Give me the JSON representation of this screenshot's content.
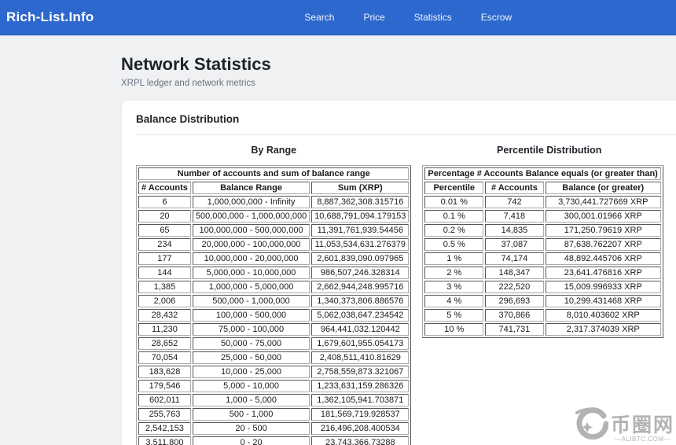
{
  "header": {
    "brand": "Rich-List.Info",
    "nav": [
      "Search",
      "Price",
      "Statistics",
      "Escrow"
    ]
  },
  "page": {
    "title": "Network Statistics",
    "subtitle": "XRPL ledger and network metrics"
  },
  "card": {
    "title": "Balance Distribution"
  },
  "by_range": {
    "heading": "By Range",
    "caption": "Number of accounts and sum of balance range",
    "columns": [
      "# Accounts",
      "Balance Range",
      "Sum (XRP)"
    ],
    "rows": [
      [
        "6",
        "1,000,000,000 - Infinity",
        "8,887,362,308.315716"
      ],
      [
        "20",
        "500,000,000 - 1,000,000,000",
        "10,688,791,094.179153"
      ],
      [
        "65",
        "100,000,000 - 500,000,000",
        "11,391,761,939.54456"
      ],
      [
        "234",
        "20,000,000 - 100,000,000",
        "11,053,534,631.276379"
      ],
      [
        "177",
        "10,000,000 - 20,000,000",
        "2,601,839,090.097965"
      ],
      [
        "144",
        "5,000,000 - 10,000,000",
        "986,507,246.328314"
      ],
      [
        "1,385",
        "1,000,000 - 5,000,000",
        "2,662,944,248.995716"
      ],
      [
        "2,006",
        "500,000 - 1,000,000",
        "1,340,373,806.886576"
      ],
      [
        "28,432",
        "100,000 - 500,000",
        "5,062,038,647.234542"
      ],
      [
        "11,230",
        "75,000 - 100,000",
        "964,441,032.120442"
      ],
      [
        "28,652",
        "50,000 - 75,000",
        "1,679,601,955.054173"
      ],
      [
        "70,054",
        "25,000 - 50,000",
        "2,408,511,410.81629"
      ],
      [
        "183,628",
        "10,000 - 25,000",
        "2,758,559,873.321067"
      ],
      [
        "179,546",
        "5,000 - 10,000",
        "1,233,631,159.286326"
      ],
      [
        "602,011",
        "1,000 - 5,000",
        "1,362,105,941.703871"
      ],
      [
        "255,763",
        "500 - 1,000",
        "181,569,719.928537"
      ],
      [
        "2,542,153",
        "20 - 500",
        "216,496,208.400534"
      ],
      [
        "3,511,800",
        "0 - 20",
        "23,743,366.73288"
      ]
    ]
  },
  "percentile": {
    "heading": "Percentile Distribution",
    "caption": "Percentage # Accounts Balance equals (or greater than)",
    "columns": [
      "Percentile",
      "# Accounts",
      "Balance (or greater)"
    ],
    "rows": [
      [
        "0.01 %",
        "742",
        "3,730,441.727669 XRP"
      ],
      [
        "0.1 %",
        "7,418",
        "300,001.01966 XRP"
      ],
      [
        "0.2 %",
        "14,835",
        "171,250.79619 XRP"
      ],
      [
        "0.5 %",
        "37,087",
        "87,638.762207 XRP"
      ],
      [
        "1 %",
        "74,174",
        "48,892.445706 XRP"
      ],
      [
        "2 %",
        "148,347",
        "23,641.476816 XRP"
      ],
      [
        "3 %",
        "222,520",
        "15,009.996933 XRP"
      ],
      [
        "4 %",
        "296,693",
        "10,299.431468 XRP"
      ],
      [
        "5 %",
        "370,866",
        "8,010.403602 XRP"
      ],
      [
        "10 %",
        "741,731",
        "2,317.374039 XRP"
      ]
    ]
  },
  "watermark": {
    "logo_text": "币圈网",
    "site": "—ALIBTC.COM—"
  },
  "colors": {
    "header_bg": "#2d68ce",
    "page_bg": "#f0f1f3",
    "card_bg": "#ffffff",
    "text": "#212529",
    "muted": "#6b7280",
    "watermark": "#b3b3b5"
  }
}
